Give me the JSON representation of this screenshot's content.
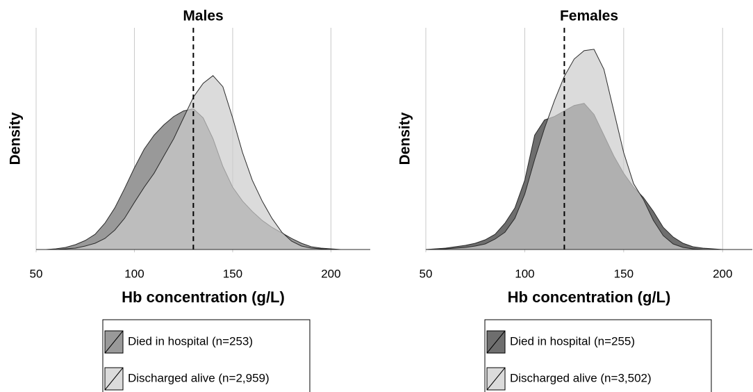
{
  "chart_data": [
    {
      "type": "density",
      "title": "Males",
      "xlabel": "Hb concentration (g/L)",
      "ylabel": "Density",
      "x": [
        50,
        55,
        60,
        65,
        70,
        75,
        80,
        85,
        90,
        95,
        100,
        105,
        110,
        115,
        120,
        125,
        130,
        135,
        140,
        145,
        150,
        155,
        160,
        165,
        170,
        175,
        180,
        185,
        190,
        195,
        200,
        205,
        210,
        215,
        220
      ],
      "series": [
        {
          "name": "Died in hospital (n=253)",
          "color": "#999999",
          "opacity": 1,
          "values": [
            0,
            0,
            1,
            3,
            7,
            13,
            22,
            38,
            60,
            88,
            118,
            145,
            165,
            180,
            192,
            200,
            203,
            190,
            160,
            120,
            90,
            70,
            55,
            42,
            32,
            24,
            16,
            9,
            4,
            2,
            1,
            0,
            0,
            0,
            0
          ]
        },
        {
          "name": "Discharged alive (n=2,959)",
          "color": "#cccccc",
          "opacity": 0.7,
          "values": [
            0,
            0,
            0,
            1,
            2,
            5,
            9,
            16,
            28,
            45,
            68,
            90,
            110,
            135,
            160,
            190,
            220,
            240,
            251,
            235,
            190,
            140,
            100,
            70,
            45,
            25,
            12,
            5,
            2,
            1,
            0,
            0,
            0,
            0,
            0
          ]
        }
      ],
      "xlim": [
        50,
        220
      ],
      "xticks": [
        50,
        100,
        150,
        200
      ],
      "ylim": [
        0,
        320
      ],
      "grid": true,
      "vline": 130,
      "legend": "bottom"
    },
    {
      "type": "density",
      "title": "Females",
      "xlabel": "Hb concentration (g/L)",
      "ylabel": "Density",
      "x": [
        50,
        55,
        60,
        65,
        70,
        75,
        80,
        85,
        90,
        95,
        100,
        105,
        110,
        115,
        120,
        125,
        130,
        135,
        140,
        145,
        150,
        155,
        160,
        165,
        170,
        175,
        180,
        185,
        190,
        195,
        200,
        205,
        210,
        215
      ],
      "series": [
        {
          "name": "Died in hospital (n=255)",
          "color": "#6e6e6e",
          "opacity": 1,
          "values": [
            0,
            1,
            2,
            4,
            6,
            9,
            14,
            22,
            38,
            60,
            100,
            165,
            187,
            192,
            200,
            208,
            211,
            195,
            165,
            135,
            110,
            90,
            75,
            55,
            32,
            18,
            9,
            4,
            2,
            1,
            0,
            0,
            0,
            0
          ]
        },
        {
          "name": "Discharged alive (n=3,502)",
          "color": "#cccccc",
          "opacity": 0.7,
          "values": [
            0,
            0,
            1,
            2,
            3,
            5,
            8,
            15,
            25,
            45,
            80,
            130,
            175,
            215,
            250,
            275,
            287,
            289,
            260,
            200,
            140,
            95,
            72,
            42,
            20,
            8,
            3,
            1,
            0,
            0,
            0,
            0,
            0,
            0
          ]
        }
      ],
      "xlim": [
        50,
        215
      ],
      "xticks": [
        50,
        100,
        150,
        200
      ],
      "ylim": [
        0,
        320
      ],
      "grid": true,
      "vline": 120,
      "legend": "bottom"
    }
  ]
}
